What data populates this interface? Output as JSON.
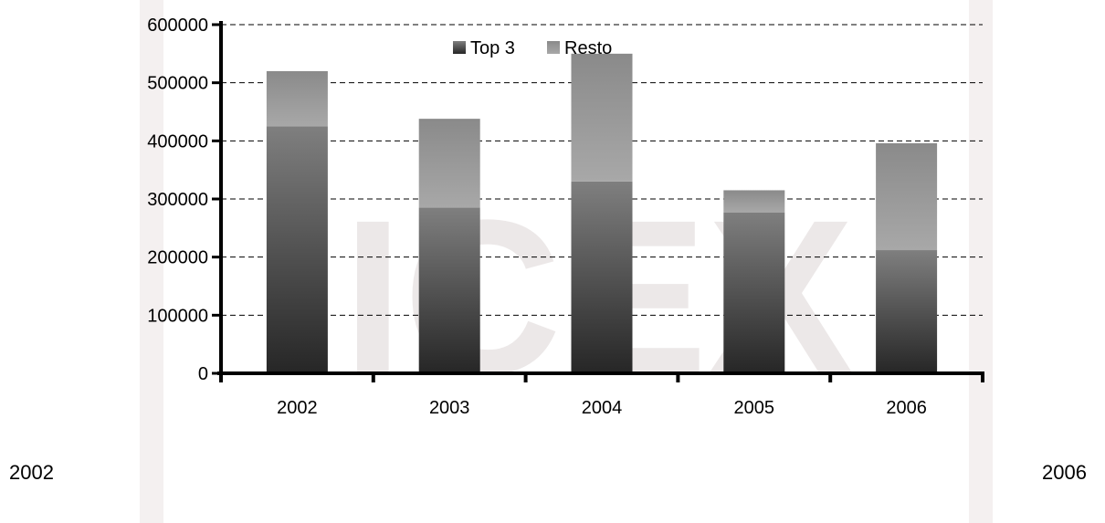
{
  "colors": {
    "top3_dark": "#262626",
    "top3_light": "#7f7f7f",
    "resto_dark": "#8a8a8a",
    "resto_light": "#a8a8a8",
    "watermark": "#ece8e8",
    "side_band": "#f4f0f0"
  },
  "watermark": {
    "text": "ICEX"
  },
  "corner_labels": {
    "left": "2002",
    "right": "2006"
  },
  "chart_data": {
    "type": "bar",
    "stacked": true,
    "categories": [
      "2002",
      "2003",
      "2004",
      "2005",
      "2006"
    ],
    "series": [
      {
        "name": "Top 3",
        "values": [
          425000,
          285000,
          330000,
          277000,
          212000
        ]
      },
      {
        "name": "Resto",
        "values": [
          95000,
          153000,
          220000,
          38000,
          184000
        ]
      }
    ],
    "ylim": [
      0,
      600000
    ],
    "yticks": [
      "0",
      "100000",
      "200000",
      "300000",
      "400000",
      "500000",
      "600000"
    ],
    "grid": true,
    "legend_position": "top-center",
    "title": "",
    "xlabel": "",
    "ylabel": ""
  }
}
